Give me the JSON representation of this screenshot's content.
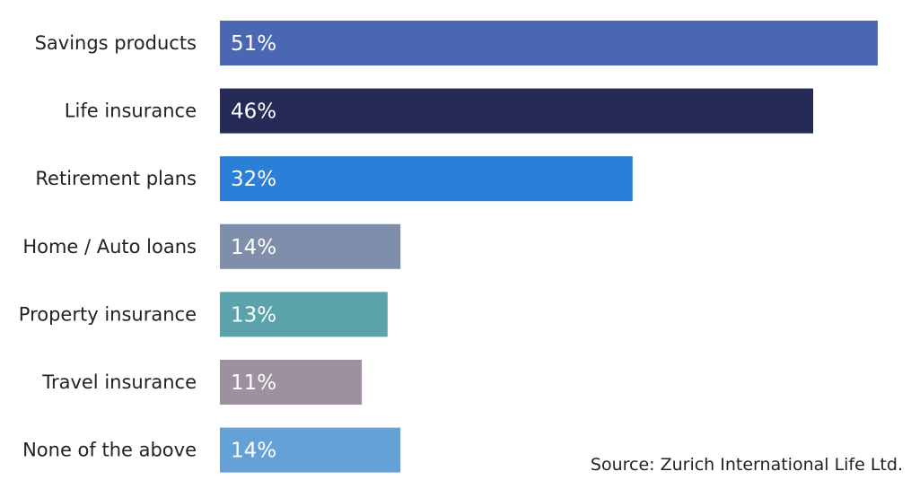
{
  "chart_data": {
    "type": "bar",
    "orientation": "horizontal",
    "categories": [
      "Savings products",
      "Life insurance",
      "Retirement plans",
      "Home / Auto loans",
      "Property insurance",
      "Travel insurance",
      "None of the above"
    ],
    "values": [
      51,
      46,
      32,
      14,
      13,
      11,
      14
    ],
    "value_labels": [
      "51%",
      "46%",
      "32%",
      "14%",
      "13%",
      "11%",
      "14%"
    ],
    "colors": [
      "#4a67b3",
      "#252a56",
      "#2b7fd8",
      "#7f8fab",
      "#5aa3ab",
      "#9d909f",
      "#64a1d6"
    ],
    "unit": "%",
    "grid": false,
    "legend": "none",
    "source": "Source: Zurich International Life Ltd."
  }
}
